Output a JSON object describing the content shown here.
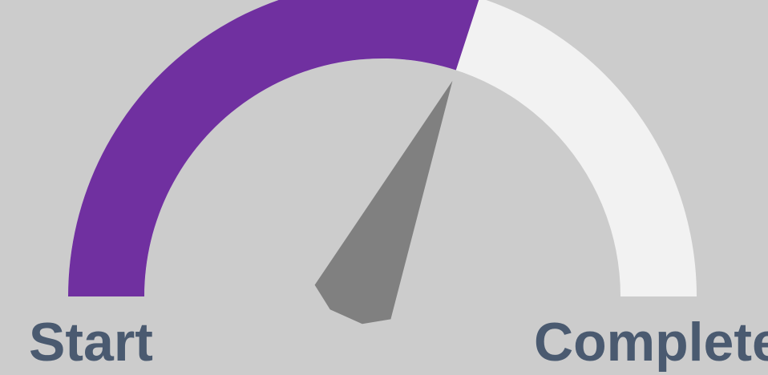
{
  "chart_data": {
    "type": "gauge",
    "value": 0.6,
    "min_label": "Start",
    "max_label": "Complete",
    "colors": {
      "fill": "#7030a0",
      "track": "#f2f2f2",
      "needle": "#808080",
      "label": "#4a5a70",
      "background": "#cccccc"
    }
  }
}
